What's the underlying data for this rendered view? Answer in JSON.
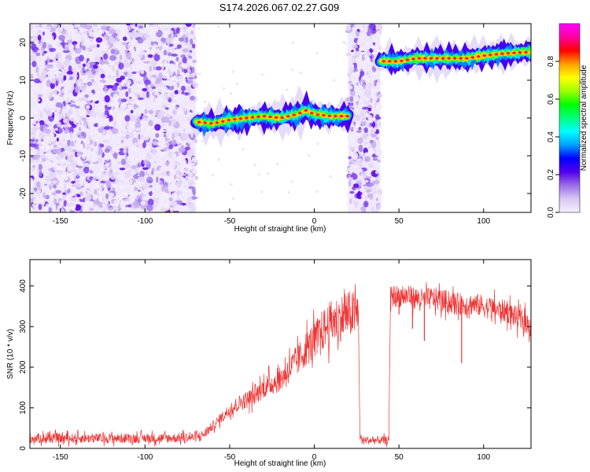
{
  "title": "S174.2026.067.02.27.G09",
  "chart_data": [
    {
      "type": "heatmap",
      "name": "spectrogram",
      "xlabel": "Height of straight line (km)",
      "ylabel": "Frequency (Hz)",
      "xlim": [
        -168,
        128
      ],
      "ylim": [
        -25,
        25
      ],
      "xticks": [
        -150,
        -100,
        -50,
        0,
        50,
        100
      ],
      "yticks": [
        -20,
        -10,
        0,
        10,
        20
      ],
      "noise_regions_km": [
        [
          -168,
          -70
        ],
        [
          20,
          39
        ]
      ],
      "noise_density": 0.45,
      "signal_tracks": [
        {
          "x_start": -70,
          "x_end": 20,
          "freq_points": [
            [
              -70,
              -1
            ],
            [
              -60,
              -1.5
            ],
            [
              -50,
              -0.5
            ],
            [
              -40,
              0
            ],
            [
              -30,
              0.5
            ],
            [
              -20,
              0
            ],
            [
              -10,
              1
            ],
            [
              -5,
              2
            ],
            [
              0,
              1
            ],
            [
              10,
              0.5
            ],
            [
              20,
              0.5
            ]
          ]
        },
        {
          "x_start": 39,
          "x_end": 128,
          "freq_points": [
            [
              39,
              15
            ],
            [
              50,
              15
            ],
            [
              60,
              15.8
            ],
            [
              70,
              15.8
            ],
            [
              80,
              15.8
            ],
            [
              90,
              15.8
            ],
            [
              100,
              16.5
            ],
            [
              110,
              17
            ],
            [
              120,
              17.3
            ],
            [
              128,
              17.5
            ]
          ]
        }
      ],
      "colorbar": {
        "label": "Normalized spectral amplitude",
        "ticks": [
          0.0,
          0.2,
          0.4,
          0.6,
          0.8
        ],
        "range": [
          0.0,
          1.0
        ],
        "colors": [
          "#f5f0ff",
          "#d9c8f5",
          "#9c6ee6",
          "#5500ee",
          "#0000ff",
          "#00a0ff",
          "#00ffff",
          "#00ff80",
          "#00ff00",
          "#a0ff00",
          "#ffff00",
          "#ffa000",
          "#ff0000",
          "#ff00a0",
          "#ff00ff"
        ]
      }
    },
    {
      "type": "line",
      "name": "snr",
      "xlabel": "Height of straight line (km)",
      "ylabel": "SNR (10 * v/v)",
      "xlim": [
        -168,
        128
      ],
      "ylim": [
        0,
        465
      ],
      "xticks": [
        -150,
        -100,
        -50,
        0,
        50,
        100
      ],
      "yticks": [
        0,
        100,
        200,
        300,
        400
      ],
      "color": "#ee3333",
      "series": [
        {
          "name": "SNR",
          "x": [
            -168,
            -150,
            -130,
            -110,
            -90,
            -70,
            -65,
            -60,
            -55,
            -50,
            -45,
            -40,
            -35,
            -30,
            -25,
            -20,
            -15,
            -10,
            -5,
            0,
            5,
            10,
            15,
            20,
            25,
            26,
            27,
            28,
            30,
            35,
            40,
            44,
            45,
            46,
            50,
            55,
            60,
            65,
            70,
            75,
            80,
            85,
            90,
            95,
            100,
            105,
            110,
            115,
            120,
            125,
            128
          ],
          "y": [
            25,
            25,
            25,
            25,
            25,
            27,
            35,
            55,
            75,
            95,
            110,
            120,
            130,
            150,
            160,
            170,
            195,
            215,
            245,
            265,
            290,
            310,
            320,
            330,
            330,
            340,
            30,
            20,
            20,
            20,
            20,
            20,
            370,
            375,
            375,
            375,
            370,
            365,
            370,
            365,
            360,
            355,
            355,
            355,
            350,
            345,
            340,
            335,
            320,
            310,
            300
          ]
        }
      ],
      "dips": [
        {
          "x": 50,
          "y": 330
        },
        {
          "x": 58,
          "y": 295
        },
        {
          "x": 65,
          "y": 265
        },
        {
          "x": 87,
          "y": 210
        }
      ]
    }
  ]
}
